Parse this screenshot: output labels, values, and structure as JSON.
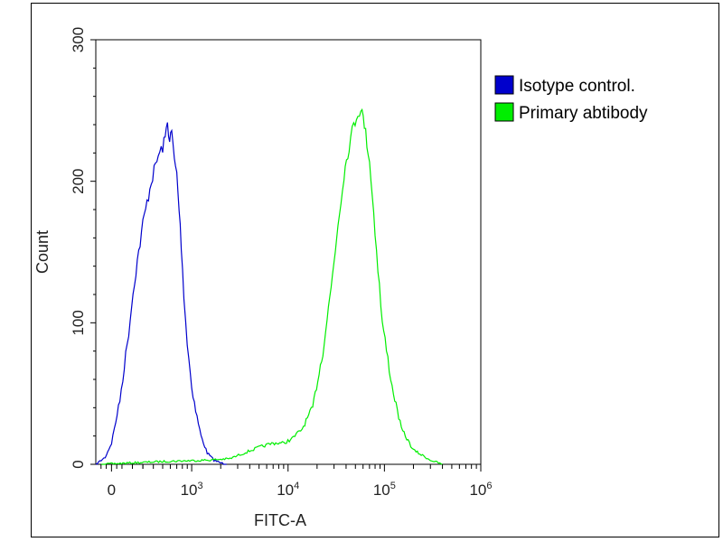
{
  "chart_data": {
    "type": "line",
    "title": "",
    "xlabel": "FITC-A",
    "ylabel": "Count",
    "x_scale": "biexponential",
    "xlim": [
      -150,
      1000000
    ],
    "ylim": [
      0,
      300
    ],
    "y_ticks": [
      0,
      100,
      200,
      300
    ],
    "x_tick_labels": [
      {
        "value": 0,
        "base": "0",
        "exp": ""
      },
      {
        "value": 1000,
        "base": "10",
        "exp": "3"
      },
      {
        "value": 10000,
        "base": "10",
        "exp": "4"
      },
      {
        "value": 100000,
        "base": "10",
        "exp": "5"
      },
      {
        "value": 1000000,
        "base": "10",
        "exp": "6"
      }
    ],
    "grid": false,
    "legend_position": "right",
    "series": [
      {
        "name": "Isotype control.",
        "color": "#0000cc",
        "x": [
          -150,
          -60,
          0,
          80,
          150,
          220,
          300,
          380,
          450,
          500,
          530,
          560,
          590,
          620,
          660,
          700,
          740,
          780,
          830,
          900,
          1000,
          1100,
          1250,
          1450,
          1700,
          2000,
          2300
        ],
        "y": [
          0,
          5,
          15,
          45,
          85,
          130,
          170,
          200,
          218,
          224,
          230,
          243,
          228,
          235,
          215,
          205,
          180,
          155,
          120,
          85,
          55,
          38,
          20,
          8,
          3,
          1,
          0
        ]
      },
      {
        "name": "Primary abtibody",
        "color": "#00ee00",
        "x": [
          -100,
          500,
          1500,
          2500,
          3500,
          5000,
          7000,
          9000,
          11000,
          14000,
          18000,
          23000,
          28000,
          33000,
          38000,
          43000,
          48000,
          53000,
          57000,
          62000,
          70000,
          80000,
          95000,
          120000,
          150000,
          200000,
          300000,
          400000
        ],
        "y": [
          0,
          2,
          3,
          4,
          8,
          12,
          15,
          15,
          18,
          25,
          40,
          80,
          125,
          170,
          205,
          225,
          240,
          248,
          252,
          240,
          215,
          165,
          100,
          55,
          25,
          10,
          3,
          0
        ]
      }
    ]
  }
}
